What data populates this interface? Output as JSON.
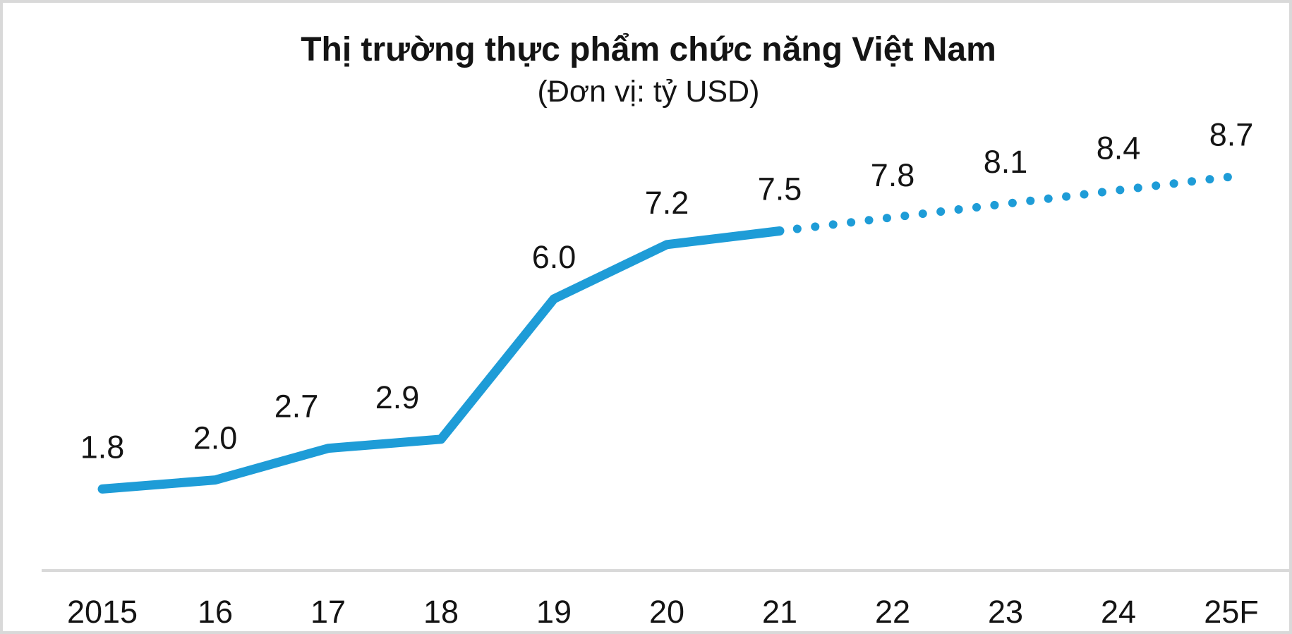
{
  "title": "Thị trường thực phẩm chức năng Việt Nam",
  "subtitle": "(Đơn vị: tỷ USD)",
  "colors": {
    "line": "#1e9cd7",
    "axis_line": "#d9d9d9",
    "frame_border": "#d9d9d9",
    "text": "#141414",
    "background": "#ffffff"
  },
  "chart_data": {
    "type": "line",
    "title": "Thị trường thực phẩm chức năng Việt Nam",
    "subtitle": "(Đơn vị: tỷ USD)",
    "unit": "tỷ USD",
    "categories": [
      "2015",
      "16",
      "17",
      "18",
      "19",
      "20",
      "21",
      "22",
      "23",
      "24",
      "25F"
    ],
    "series": [
      {
        "name": "Thị trường thực phẩm chức năng Việt Nam",
        "values": [
          1.8,
          2.0,
          2.7,
          2.9,
          6.0,
          7.2,
          7.5,
          7.8,
          8.1,
          8.4,
          8.7
        ]
      }
    ],
    "data_labels": [
      "1.8",
      "2.0",
      "2.7",
      "2.9",
      "6.0",
      "7.2",
      "7.5",
      "7.8",
      "8.1",
      "8.4",
      "8.7"
    ],
    "actual_last_index": 6,
    "actual_style": "solid",
    "forecast_style": "dotted",
    "ylim": [
      0,
      9.4
    ],
    "grid": false,
    "legend": "none",
    "xaxis_line": true,
    "yaxis_labels": false
  }
}
